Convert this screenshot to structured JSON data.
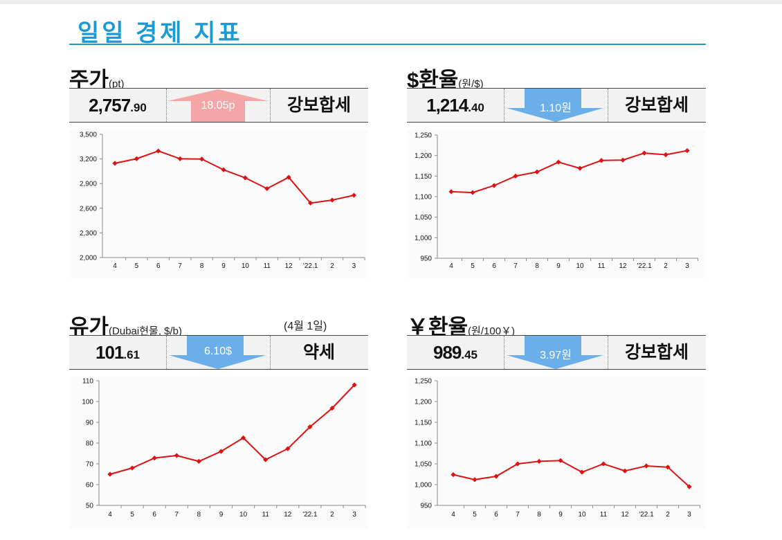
{
  "page": {
    "title": "일일 경제 지표"
  },
  "colors": {
    "title": "#1b9bd6",
    "up_arrow": "#f4a6a6",
    "down_arrow": "#6aaeea",
    "series": "#dd1111"
  },
  "panels": [
    {
      "id": "kospi",
      "title": "주가",
      "unit": "(pt)",
      "value_main": "2,757",
      "value_decimal": ".90",
      "change": "18.05p",
      "direction": "up",
      "trend": "강보합세",
      "chart_data": {
        "type": "line",
        "categories": [
          "4",
          "5",
          "6",
          "7",
          "8",
          "9",
          "10",
          "11",
          "12",
          "'22.1",
          "2",
          "3"
        ],
        "values": [
          3147,
          3203,
          3297,
          3202,
          3199,
          3068,
          2970,
          2839,
          2977,
          2663,
          2699,
          2758
        ],
        "ylim": [
          2000,
          3500
        ],
        "yticks": [
          2000,
          2300,
          2600,
          2900,
          3200,
          3500
        ],
        "ytick_labels": [
          "2,000",
          "2,300",
          "2,600",
          "2,900",
          "3,200",
          "3,500"
        ]
      }
    },
    {
      "id": "usd",
      "title": "$환율",
      "unit": "(원/$)",
      "value_main": "1,214",
      "value_decimal": ".40",
      "change": "1.10원",
      "direction": "down",
      "trend": "강보합세",
      "chart_data": {
        "type": "line",
        "categories": [
          "4",
          "5",
          "6",
          "7",
          "8",
          "9",
          "10",
          "11",
          "12",
          "'22.1",
          "2",
          "3"
        ],
        "values": [
          1112,
          1110,
          1127,
          1150,
          1160,
          1184,
          1169,
          1188,
          1189,
          1206,
          1202,
          1212
        ],
        "ylim": [
          950,
          1250
        ],
        "yticks": [
          950,
          1000,
          1050,
          1100,
          1150,
          1200,
          1250
        ],
        "ytick_labels": [
          "950",
          "1,000",
          "1,050",
          "1,100",
          "1,150",
          "1,200",
          "1,250"
        ]
      }
    },
    {
      "id": "oil",
      "title": "유가",
      "unit": "(Dubai현물, $/b)",
      "date_note": "(4월 1일)",
      "value_main": "101",
      "value_decimal": ".61",
      "change": "6.10$",
      "direction": "down",
      "trend": "약세",
      "chart_data": {
        "type": "line",
        "categories": [
          "4",
          "5",
          "6",
          "7",
          "8",
          "9",
          "10",
          "11",
          "12",
          "'22.1",
          "2",
          "3"
        ],
        "values": [
          65,
          68,
          72.8,
          74,
          71.2,
          76,
          82.5,
          72,
          77.3,
          87.8,
          96.8,
          108
        ],
        "ylim": [
          50,
          110
        ],
        "yticks": [
          50,
          60,
          70,
          80,
          90,
          100,
          110
        ],
        "ytick_labels": [
          "50",
          "60",
          "70",
          "80",
          "90",
          "100",
          "110"
        ]
      }
    },
    {
      "id": "jpy",
      "title": "￥환율",
      "unit": "(원/100￥)",
      "value_main": "989",
      "value_decimal": ".45",
      "change": "3.97원",
      "direction": "down",
      "trend": "강보합세",
      "chart_data": {
        "type": "line",
        "categories": [
          "4",
          "5",
          "6",
          "7",
          "8",
          "9",
          "10",
          "11",
          "12",
          "'22.1",
          "2",
          "3"
        ],
        "values": [
          1024,
          1012,
          1020,
          1050,
          1056,
          1058,
          1030,
          1050,
          1033,
          1045,
          1042,
          995
        ],
        "ylim": [
          950,
          1250
        ],
        "yticks": [
          950,
          1000,
          1050,
          1100,
          1150,
          1200,
          1250
        ],
        "ytick_labels": [
          "950",
          "1,000",
          "1,050",
          "1,100",
          "1,150",
          "1,200",
          "1,250"
        ]
      }
    }
  ]
}
